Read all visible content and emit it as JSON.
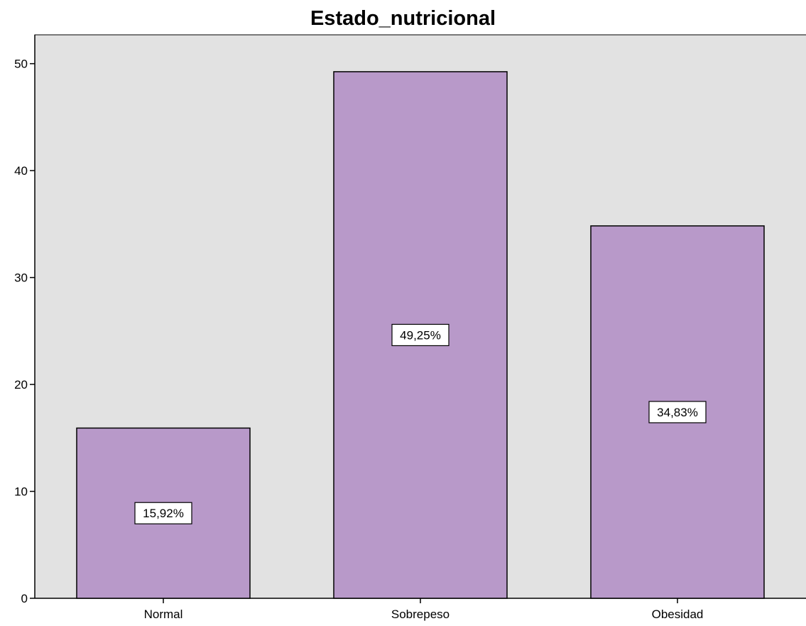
{
  "chart_data": {
    "type": "bar",
    "title": "Estado_nutricional",
    "xlabel": "",
    "ylabel": "",
    "categories": [
      "Normal",
      "Sobrepeso",
      "Obesidad"
    ],
    "values": [
      15.92,
      49.25,
      34.83
    ],
    "data_labels": [
      "15,92%",
      "49,25%",
      "34,83%"
    ],
    "ylim": [
      0,
      52.7
    ],
    "yticks": [
      0,
      10,
      20,
      30,
      40,
      50
    ],
    "ytick_labels": [
      "0",
      "10",
      "20",
      "30",
      "40",
      "50"
    ],
    "grid": false,
    "colors": {
      "bar_fill": "#b899c9",
      "plot_background": "#e2e2e2",
      "bar_stroke": "#000000"
    }
  }
}
